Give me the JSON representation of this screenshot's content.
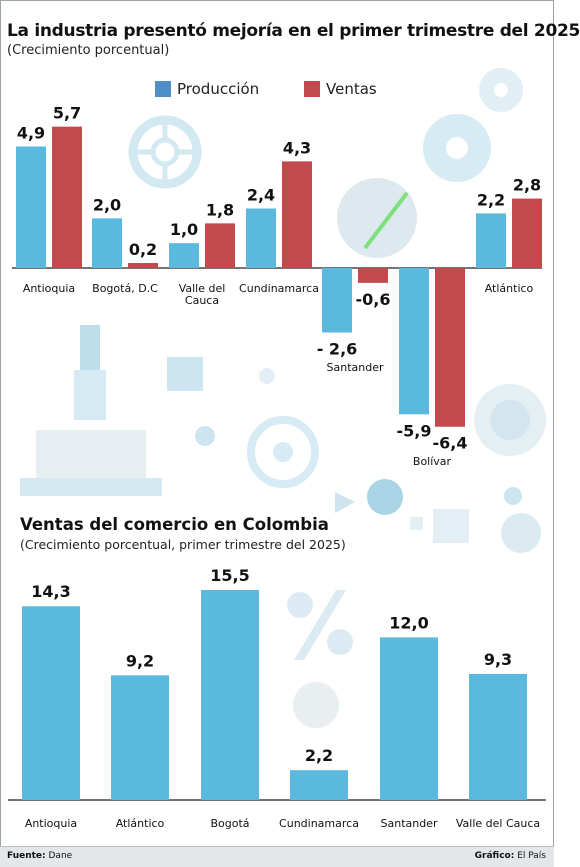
{
  "header": {
    "title": "La industria presentó mejoría en el primer trimestre del 2025",
    "subtitle": "(Crecimiento porcentual)"
  },
  "legend": {
    "production_label": "Producción",
    "sales_label": "Ventas",
    "production_color": "#5ab9dd",
    "sales_color": "#c24a4d"
  },
  "section2": {
    "title": "Ventas del comercio en Colombia",
    "subtitle": "(Crecimiento porcentual, primer trimestre del 2025)"
  },
  "footer": {
    "source_label": "Fuente:",
    "source_value": "Dane",
    "credit_label": "Gráfico:",
    "credit_value": "El País"
  },
  "chart_data": [
    {
      "type": "bar",
      "title": "La industria presentó mejoría en el primer trimestre del 2025",
      "subtitle": "(Crecimiento porcentual)",
      "categories": [
        "Antioquia",
        "Bogotá, D.C",
        "Valle del Cauca",
        "Cundinamarca",
        "Santander",
        "Bolívar",
        "Atlántico"
      ],
      "category_lines": [
        [
          "Antioquia"
        ],
        [
          "Bogotá, D.C"
        ],
        [
          "Valle del",
          "Cauca"
        ],
        [
          "Cundinamarca"
        ],
        [
          "Santander"
        ],
        [
          "Bolívar"
        ],
        [
          "Atlántico"
        ]
      ],
      "series": [
        {
          "name": "Producción",
          "color": "#5ab9dd",
          "values": [
            4.9,
            2.0,
            1.0,
            2.4,
            -2.6,
            -5.9,
            2.2
          ],
          "labels": [
            "4,9",
            "2,0",
            "1,0",
            "2,4",
            "- 2,6",
            "-5,9",
            "2,2"
          ]
        },
        {
          "name": "Ventas",
          "color": "#c24a4d",
          "values": [
            5.7,
            0.2,
            1.8,
            4.3,
            -0.6,
            -6.4,
            2.8
          ],
          "labels": [
            "5,7",
            "0,2",
            "1,8",
            "4,3",
            "-0,6",
            "-6,4",
            "2,8"
          ]
        }
      ],
      "legend_position": "top",
      "grid": false
    },
    {
      "type": "bar",
      "title": "Ventas del comercio en Colombia",
      "subtitle": "(Crecimiento porcentual, primer trimestre del 2025)",
      "categories": [
        "Antioquia",
        "Atlántico",
        "Bogotá",
        "Cundinamarca",
        "Santander",
        "Valle del Cauca"
      ],
      "values": [
        14.3,
        9.2,
        15.5,
        2.2,
        12.0,
        9.3
      ],
      "labels": [
        "14,3",
        "9,2",
        "15,5",
        "2,2",
        "12,0",
        "9,3"
      ],
      "color": "#5ab9dd",
      "grid": false
    }
  ]
}
